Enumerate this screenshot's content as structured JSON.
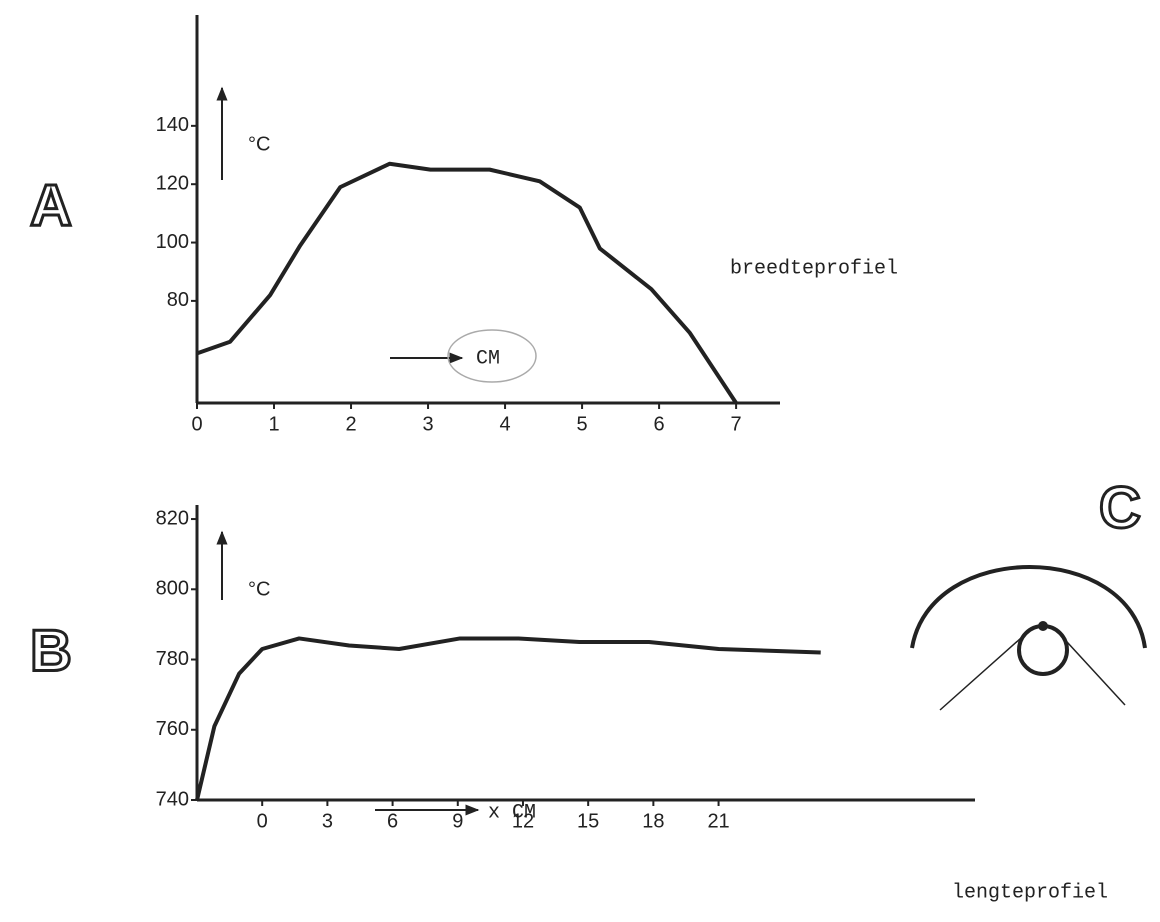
{
  "chart_data": [
    {
      "type": "line",
      "panel_label": "A",
      "x": [
        0,
        0.43,
        0.95,
        1.34,
        1.86,
        2.5,
        3.03,
        3.8,
        4.45,
        4.97,
        5.23,
        5.9,
        6.4,
        7
      ],
      "values": [
        62,
        66,
        82,
        99,
        119,
        127,
        125,
        125,
        121,
        112,
        98,
        84,
        69,
        45
      ],
      "color": "#222",
      "xlim": [
        0,
        7.57
      ],
      "xticks": [
        0,
        1,
        2,
        3,
        4,
        5,
        6,
        7
      ],
      "ylim": [
        45,
        178
      ],
      "yticks": [
        80,
        100,
        120,
        140
      ],
      "grid": false,
      "annotations": [
        "°C",
        "CM",
        "breedteprofiel"
      ]
    },
    {
      "type": "line",
      "panel_label": "B",
      "x": [
        -3,
        -2.2,
        -1.06,
        0,
        1.7,
        4,
        6.3,
        9.1,
        11.8,
        14.6,
        17.8,
        21,
        25.7
      ],
      "values": [
        740,
        761,
        776,
        783,
        786,
        784,
        783,
        786,
        786,
        785,
        785,
        783,
        782
      ],
      "color": "#222",
      "xlim": [
        -3,
        32.8
      ],
      "xticks": [
        0,
        3,
        6,
        9,
        12,
        15,
        18,
        21
      ],
      "ylim": [
        740,
        824
      ],
      "yticks": [
        740,
        760,
        780,
        800,
        820
      ],
      "grid": false,
      "annotations": [
        "°C",
        "x CM",
        "lengteprofiel"
      ]
    }
  ],
  "diagram": {
    "label": "C"
  }
}
